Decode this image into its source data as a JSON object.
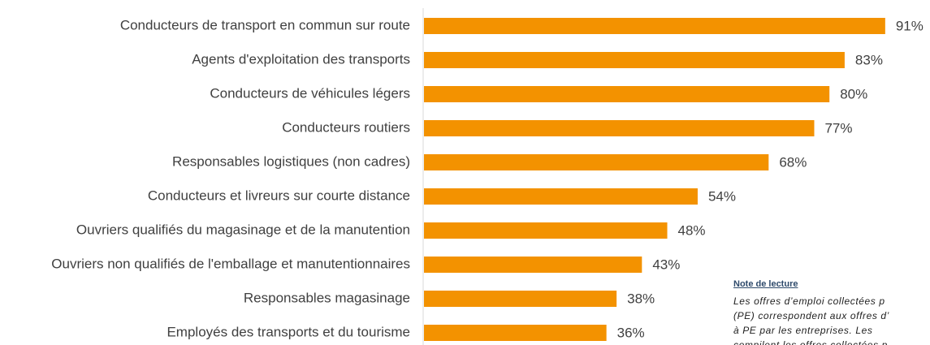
{
  "chart_data": {
    "type": "bar",
    "orientation": "horizontal",
    "categories": [
      "Conducteurs de transport en commun sur route",
      "Agents d'exploitation des transports",
      "Conducteurs de véhicules légers",
      "Conducteurs routiers",
      "Responsables logistiques (non cadres)",
      "Conducteurs et livreurs sur courte distance",
      "Ouvriers qualifiés du magasinage et de la manutention",
      "Ouvriers non qualifiés de l'emballage et manutentionnaires",
      "Responsables magasinage",
      "Employés des transports et du tourisme"
    ],
    "values": [
      91,
      83,
      80,
      77,
      68,
      54,
      48,
      43,
      38,
      36
    ],
    "value_labels": [
      "91%",
      "83%",
      "80%",
      "77%",
      "68%",
      "54%",
      "48%",
      "43%",
      "38%",
      "36%"
    ],
    "color": "#f39200",
    "xlim": [
      0,
      100
    ]
  },
  "note": {
    "title": "Note de lecture",
    "lines": [
      "Les offres d’emploi collectées p",
      "(PE) correspondent aux offres d’",
      "à PE par les entreprises. Les",
      "compilent les offres collectées p"
    ]
  }
}
